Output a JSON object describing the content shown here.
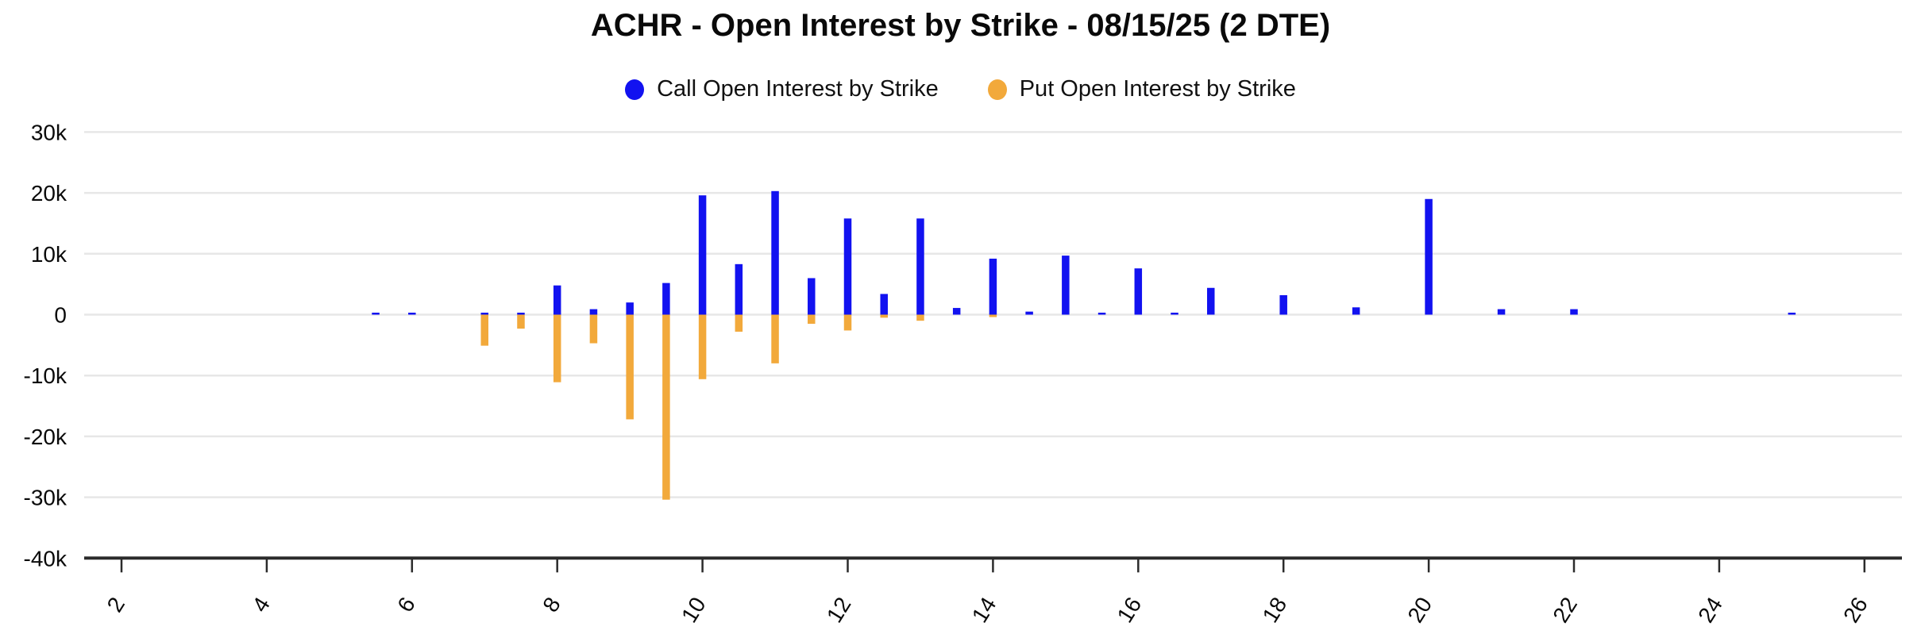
{
  "title": "ACHR - Open Interest by Strike - 08/15/25 (2 DTE)",
  "legend": {
    "call_label": "Call Open Interest by Strike",
    "put_label": "Put Open Interest by Strike"
  },
  "colors": {
    "call": "#1212f0",
    "put": "#f2a93b",
    "grid": "#e7e7e7",
    "axis": "#2b2b2b",
    "text": "#0a0a0a",
    "background": "#ffffff"
  },
  "chart_data": {
    "type": "bar",
    "title": "ACHR - Open Interest by Strike - 08/15/25 (2 DTE)",
    "xlabel": "",
    "ylabel": "",
    "grid": true,
    "legend_position": "top-center",
    "xlim": [
      1.45,
      26.6
    ],
    "ylim": [
      -40000,
      30000
    ],
    "x_ticks": [
      2,
      4,
      6,
      8,
      10,
      12,
      14,
      16,
      18,
      20,
      22,
      24,
      26
    ],
    "y_ticks": [
      {
        "value": 30000,
        "label": "30k"
      },
      {
        "value": 20000,
        "label": "20k"
      },
      {
        "value": 10000,
        "label": "10k"
      },
      {
        "value": 0,
        "label": "0"
      },
      {
        "value": -10000,
        "label": "-10k"
      },
      {
        "value": -20000,
        "label": "-20k"
      },
      {
        "value": -30000,
        "label": "-30k"
      },
      {
        "value": -40000,
        "label": "-40k"
      }
    ],
    "categories": [
      5.5,
      6,
      7,
      7.5,
      8,
      8.5,
      9,
      9.5,
      10,
      10.5,
      11,
      11.5,
      12,
      12.5,
      13,
      13.5,
      14,
      14.5,
      15,
      15.5,
      16,
      16.5,
      17,
      18,
      19,
      20,
      21,
      22,
      25
    ],
    "series": [
      {
        "name": "Call Open Interest by Strike",
        "color": "#1212f0",
        "values": [
          300,
          300,
          300,
          250,
          4800,
          900,
          2000,
          5200,
          19600,
          8300,
          20300,
          6000,
          15800,
          3400,
          15800,
          1100,
          9200,
          500,
          9700,
          300,
          7600,
          250,
          4400,
          3200,
          1200,
          19000,
          900,
          900,
          200
        ]
      },
      {
        "name": "Put Open Interest by Strike",
        "color": "#f2a93b",
        "values": [
          0,
          0,
          -5100,
          -2300,
          -11100,
          -4700,
          -17200,
          -30400,
          -10600,
          -2800,
          -8000,
          -1500,
          -2600,
          -500,
          -1000,
          0,
          -400,
          0,
          0,
          0,
          0,
          0,
          0,
          0,
          0,
          0,
          0,
          0,
          0
        ]
      }
    ]
  }
}
